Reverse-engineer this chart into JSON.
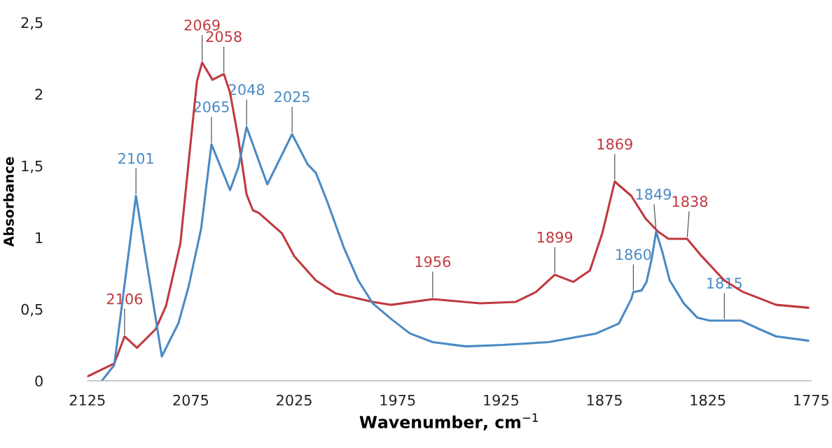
{
  "chart_data": {
    "type": "line",
    "xlabel": "Wavenumber, cm$^{−1}$",
    "ylabel": "Absorbance",
    "xlim": [
      2125,
      1775
    ],
    "xticks": [
      2125,
      2075,
      2025,
      1975,
      1925,
      1875,
      1825,
      1775
    ],
    "ylim": [
      0,
      2.5
    ],
    "yticks": [
      0,
      {
        "value": 0.5,
        "label": "0,5"
      },
      1,
      {
        "value": 1.5,
        "label": "1,5"
      },
      2,
      {
        "value": 2.5,
        "label": "2,5"
      }
    ],
    "grid": false,
    "marker": "none",
    "line_style": "solid",
    "series": [
      {
        "color": "#c0393f",
        "x": [
          2125,
          2112,
          2107,
          2101,
          2092,
          2087,
          2080,
          2076,
          2072,
          2069.5,
          2064.5,
          2059,
          2056,
          2052,
          2048,
          2045,
          2042,
          2031,
          2025,
          2014.5,
          2005,
          1996,
          1987,
          1978,
          1958,
          1935,
          1918,
          1908,
          1899,
          1890,
          1882,
          1876,
          1870,
          1862,
          1855,
          1849,
          1844,
          1835,
          1828,
          1817,
          1808,
          1792,
          1776.5
        ],
        "values": [
          0.03,
          0.12,
          0.31,
          0.23,
          0.36,
          0.52,
          0.96,
          1.53,
          2.09,
          2.22,
          2.1,
          2.14,
          2.01,
          1.69,
          1.3,
          1.19,
          1.17,
          1.03,
          0.87,
          0.7,
          0.61,
          0.58,
          0.55,
          0.53,
          0.57,
          0.54,
          0.55,
          0.62,
          0.74,
          0.69,
          0.77,
          1.03,
          1.39,
          1.29,
          1.13,
          1.04,
          0.99,
          0.99,
          0.87,
          0.7,
          0.62,
          0.53,
          0.51
        ]
      },
      {
        "color": "#4a8ac4",
        "x": [
          2118,
          2112,
          2101.5,
          2089,
          2081,
          2076,
          2070,
          2065,
          2056,
          2052,
          2048,
          2038,
          2026,
          2018.5,
          2014.5,
          2009,
          2001,
          1994,
          1987,
          1978,
          1969,
          1958,
          1942,
          1924,
          1902,
          1879,
          1868,
          1862,
          1861,
          1857,
          1854.6,
          1852,
          1850,
          1847,
          1843.4,
          1836.6,
          1830,
          1824,
          1809,
          1800,
          1792,
          1776.5
        ],
        "values": [
          0,
          0.11,
          1.29,
          0.17,
          0.4,
          0.66,
          1.06,
          1.65,
          1.33,
          1.49,
          1.77,
          1.37,
          1.72,
          1.51,
          1.45,
          1.25,
          0.93,
          0.7,
          0.54,
          0.43,
          0.33,
          0.27,
          0.24,
          0.25,
          0.27,
          0.33,
          0.4,
          0.57,
          0.62,
          0.63,
          0.69,
          0.86,
          1.04,
          0.9,
          0.7,
          0.54,
          0.44,
          0.42,
          0.42,
          0.36,
          0.31,
          0.28
        ]
      }
    ],
    "annotations": [
      {
        "text": "2106",
        "x": 2107,
        "y": 0.31
      },
      {
        "text": "2101",
        "x": 2101.5,
        "y": 1.29
      },
      {
        "text": "2069",
        "x": 2069.5,
        "y": 2.22
      },
      {
        "text": "2065",
        "x": 2065,
        "y": 1.65
      },
      {
        "text": "2058",
        "x": 2059,
        "y": 2.14
      },
      {
        "text": "2048",
        "x": 2048,
        "y": 1.77
      },
      {
        "text": "2025",
        "x": 2026,
        "y": 1.72
      },
      {
        "text": "1956",
        "x": 1958,
        "y": 0.57
      },
      {
        "text": "1899",
        "x": 1899,
        "y": 0.74
      },
      {
        "text": "1869",
        "x": 1870,
        "y": 1.39
      },
      {
        "text": "1860",
        "x": 1861,
        "y": 0.62
      },
      {
        "text": "1849",
        "x": 1850,
        "y": 1.04
      },
      {
        "text": "1838",
        "x": 1835,
        "y": 0.99
      },
      {
        "text": "1815",
        "x": 1817,
        "y": 0.42
      }
    ]
  }
}
